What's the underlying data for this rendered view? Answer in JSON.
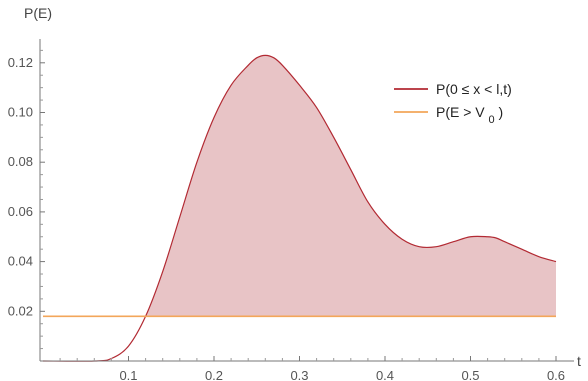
{
  "chart_data": {
    "type": "area",
    "title": "",
    "xlabel": "t",
    "ylabel": "P(E)",
    "xlim": [
      0,
      0.62
    ],
    "ylim": [
      0,
      0.13
    ],
    "xticks": [
      0.1,
      0.2,
      0.3,
      0.4,
      0.5,
      0.6
    ],
    "yticks": [
      0.02,
      0.04,
      0.06,
      0.08,
      0.1,
      0.12
    ],
    "xtick_labels": [
      "0.1",
      "0.2",
      "0.3",
      "0.4",
      "0.5",
      "0.6"
    ],
    "ytick_labels": [
      "0.02",
      "0.04",
      "0.06",
      "0.08",
      "0.10",
      "0.12"
    ],
    "grid": false,
    "legend_position": "top-right",
    "series": [
      {
        "name": "P(0 ≤ x < l,t)",
        "color": "#b22a33",
        "fill": "#e8c4c6",
        "x": [
          0.0,
          0.06,
          0.08,
          0.1,
          0.12,
          0.14,
          0.16,
          0.18,
          0.2,
          0.22,
          0.24,
          0.25,
          0.26,
          0.27,
          0.28,
          0.3,
          0.32,
          0.34,
          0.36,
          0.38,
          0.4,
          0.42,
          0.44,
          0.46,
          0.48,
          0.5,
          0.52,
          0.53,
          0.54,
          0.56,
          0.58,
          0.6
        ],
        "y": [
          0.0,
          0.0,
          0.001,
          0.006,
          0.018,
          0.036,
          0.058,
          0.08,
          0.098,
          0.111,
          0.119,
          0.122,
          0.123,
          0.122,
          0.119,
          0.111,
          0.102,
          0.09,
          0.077,
          0.064,
          0.055,
          0.049,
          0.046,
          0.046,
          0.048,
          0.05,
          0.05,
          0.0495,
          0.048,
          0.045,
          0.042,
          0.04
        ]
      },
      {
        "name": "P(E > V0)",
        "color": "#f3a65a",
        "x": [
          0.0,
          0.6
        ],
        "y": [
          0.018,
          0.018
        ]
      }
    ],
    "legend": [
      {
        "text": "P(0 ≤ x < l,t)",
        "subscript": ""
      },
      {
        "text": "P(E > V",
        "subscript": "0",
        "suffix": ")"
      }
    ]
  }
}
